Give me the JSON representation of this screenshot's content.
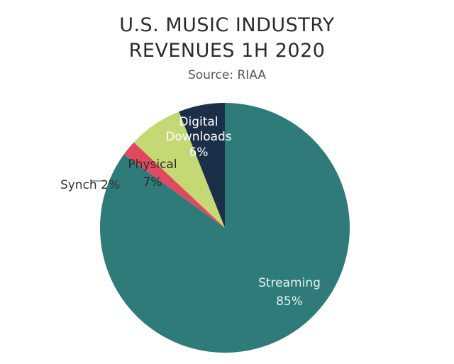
{
  "chart_data": {
    "type": "pie",
    "title_lines": [
      "U.S. MUSIC INDUSTRY",
      "REVENUES 1H 2020"
    ],
    "subtitle": "Source: RIAA",
    "slices": [
      {
        "name": "Streaming",
        "value": 85,
        "label": "85%",
        "color": "#2e7b79",
        "label_color": "#e6f2f1"
      },
      {
        "name": "Synch",
        "value": 2,
        "label": "Synch 2%",
        "color": "#e04a60",
        "label_color": "#333333"
      },
      {
        "name": "Physical",
        "value": 7,
        "label": "7%",
        "color": "#c4d873",
        "label_color": "#2b2b2b"
      },
      {
        "name": "Digital Downloads",
        "value": 6,
        "label": "6%",
        "color": "#1c2f48",
        "label_color": "#ffffff"
      }
    ],
    "start": "12 o'clock, clockwise, Streaming first",
    "legend": "none"
  }
}
